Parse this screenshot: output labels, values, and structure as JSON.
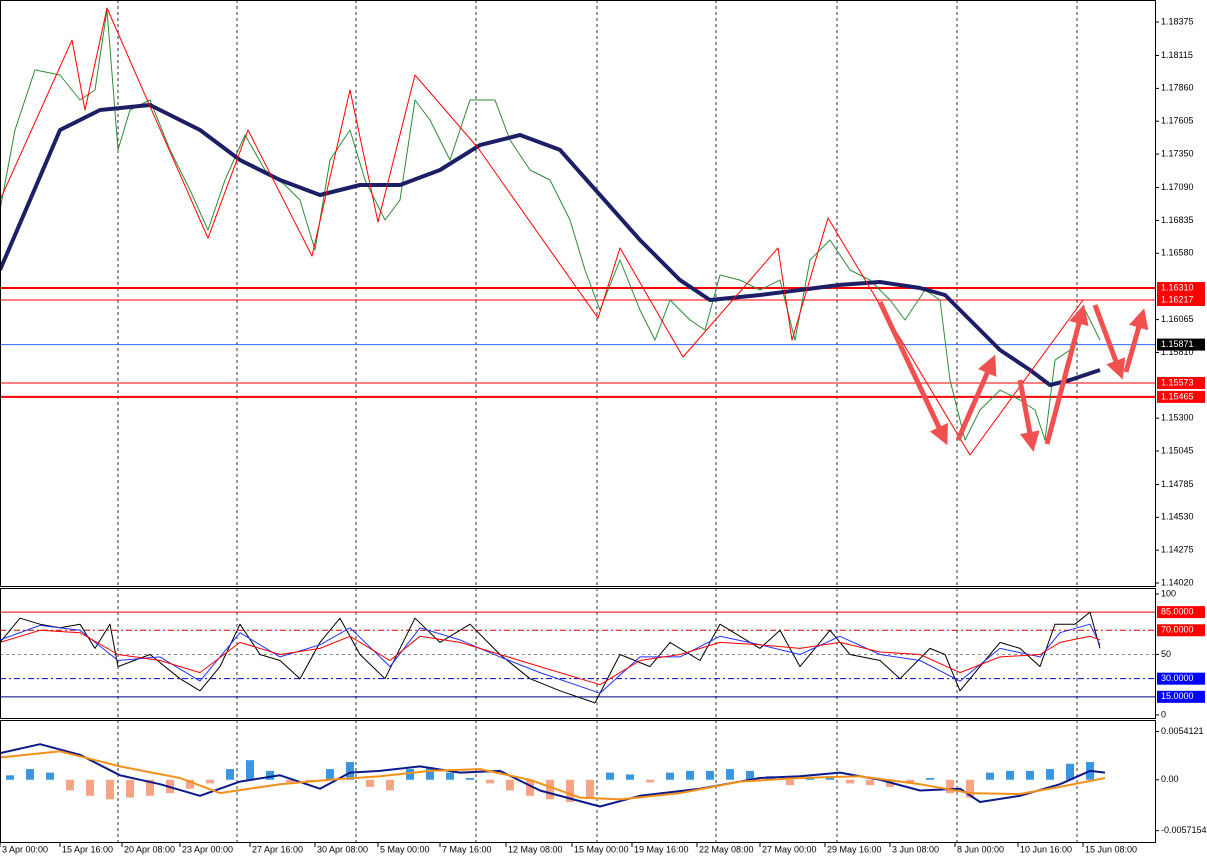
{
  "chart_data": [
    {
      "type": "line",
      "xlim": [
        0,
        1155
      ],
      "ylim": [
        1.13997,
        1.18546
      ],
      "yticks": [
        1.18375,
        1.18115,
        {
          "value": 1.1786,
          "label": "1.17860"
        },
        1.17605,
        {
          "value": 1.1735,
          "label": "1.17350"
        },
        {
          "value": 1.1709,
          "label": "1.17090"
        },
        1.16835,
        {
          "value": 1.1658,
          "label": "1.16580"
        },
        1.16065,
        {
          "value": 1.1581,
          "label": "1.15810"
        },
        {
          "value": 1.153,
          "label": "1.15300"
        },
        1.15045,
        1.14785,
        {
          "value": 1.1453,
          "label": "1.14530"
        },
        1.14275,
        {
          "value": 1.1402,
          "label": "1.14020"
        }
      ],
      "xticks": [
        {
          "value": 0,
          "label": "3 Apr 00:00"
        },
        {
          "value": 60,
          "label": "15 Apr 16:00"
        },
        {
          "value": 122,
          "label": "20 Apr 08:00"
        },
        {
          "value": 180,
          "label": "23 Apr 00:00"
        },
        {
          "value": 250,
          "label": "27 Apr 16:00"
        },
        {
          "value": 315,
          "label": "30 Apr 08:00"
        },
        {
          "value": 378,
          "label": "5 May 00:00"
        },
        {
          "value": 440,
          "label": "7 May 16:00"
        },
        {
          "value": 506,
          "label": "12 May 08:00"
        },
        {
          "value": 572,
          "label": "15 May 00:00"
        },
        {
          "value": 632,
          "label": "19 May 16:00"
        },
        {
          "value": 697,
          "label": "22 May 08:00"
        },
        {
          "value": 760,
          "label": "27 May 00:00"
        },
        {
          "value": 825,
          "label": "29 May 16:00"
        },
        {
          "value": 890,
          "label": "3 Jun 08:00"
        },
        {
          "value": 955,
          "label": "8 Jun 00:00"
        },
        {
          "value": 1018,
          "label": "10 Jun 16:00"
        },
        {
          "value": 1083,
          "label": "15 Jun 08:00"
        }
      ],
      "separators": [
        118,
        237,
        356,
        476,
        597,
        716,
        837,
        957,
        1077
      ],
      "levels": [
        {
          "value": 1.1631,
          "label": "1.16310",
          "color": "#ff0000",
          "label_color": "#ff0000",
          "style": "thick"
        },
        {
          "value": 1.16217,
          "label": "1.16217",
          "color": "#ff0000",
          "label_color": "#ff0000",
          "style": "thin"
        },
        {
          "value": 1.15871,
          "label": "1.15871",
          "color": "#3366ff",
          "label_color": "#000000",
          "style": "thin"
        },
        {
          "value": 1.15573,
          "label": "1.15573",
          "color": "#ff0000",
          "label_color": "#ff0000",
          "style": "thin"
        },
        {
          "value": 1.15465,
          "label": "1.15465",
          "color": "#ff0000",
          "label_color": "#ff0000",
          "style": "thick"
        }
      ],
      "series": [
        {
          "color": "#2e8b3a",
          "style": "thin",
          "x": [
            0,
            15,
            35,
            60,
            80,
            95,
            107,
            118,
            130,
            150,
            170,
            190,
            208,
            225,
            245,
            265,
            285,
            300,
            315,
            330,
            350,
            365,
            385,
            400,
            415,
            430,
            450,
            470,
            495,
            510,
            530,
            550,
            570,
            585,
            600,
            620,
            640,
            655,
            670,
            690,
            705,
            720,
            740,
            760,
            780,
            795,
            810,
            830,
            850,
            870,
            890,
            905,
            925,
            940,
            950,
            965,
            980,
            1000,
            1020,
            1035,
            1045,
            1055,
            1070,
            1085,
            1100
          ],
          "values": [
            1.16916,
            1.17537,
            1.18003,
            1.17964,
            1.1777,
            1.17847,
            1.18468,
            1.17382,
            1.17692,
            1.1777,
            1.17382,
            1.17071,
            1.1676,
            1.17149,
            1.17498,
            1.17226,
            1.1711,
            1.16993,
            1.16605,
            1.17304,
            1.17537,
            1.17149,
            1.16838,
            1.16993,
            1.1777,
            1.17614,
            1.17304,
            1.1777,
            1.1777,
            1.17459,
            1.17226,
            1.17149,
            1.16838,
            1.1645,
            1.16139,
            1.16528,
            1.16139,
            1.15906,
            1.16217,
            1.16062,
            1.15984,
            1.16411,
            1.16372,
            1.16295,
            1.16372,
            1.15906,
            1.16528,
            1.16683,
            1.1645,
            1.16372,
            1.16217,
            1.16062,
            1.16295,
            1.16217,
            1.15596,
            1.1513,
            1.15363,
            1.15518,
            1.15441,
            1.15363,
            1.1513,
            1.15751,
            1.15829,
            1.16139,
            1.15906
          ]
        },
        {
          "color": "#1c1f66",
          "style": "thick",
          "x": [
            0,
            30,
            60,
            100,
            150,
            200,
            240,
            280,
            320,
            360,
            400,
            440,
            480,
            520,
            560,
            600,
            640,
            680,
            710,
            760,
            800,
            840,
            880,
            920,
            945,
            970,
            1000,
            1030,
            1050,
            1070,
            1100
          ],
          "values": [
            1.1645,
            1.16993,
            1.17537,
            1.17692,
            1.17731,
            1.17537,
            1.17304,
            1.17149,
            1.17032,
            1.1711,
            1.1711,
            1.17226,
            1.1742,
            1.17498,
            1.17382,
            1.17032,
            1.16683,
            1.16372,
            1.16217,
            1.16256,
            1.16295,
            1.16334,
            1.16357,
            1.1631,
            1.16256,
            1.16062,
            1.15829,
            1.15674,
            1.15557,
            1.15596,
            1.15674
          ]
        },
        {
          "color": "#ff0000",
          "style": "thin",
          "x": [
            0,
            72,
            85,
            107,
            145,
            208,
            248,
            312,
            350,
            378,
            415,
            478,
            598,
            620,
            683,
            778,
            792,
            828,
            970,
            1083
          ],
          "values": [
            1.16993,
            1.18235,
            1.17692,
            1.18484,
            1.17809,
            1.16698,
            1.17537,
            1.16559,
            1.17847,
            1.16823,
            1.17964,
            1.17397,
            1.16077,
            1.16621,
            1.15775,
            1.16621,
            1.15906,
            1.16854,
            1.15014,
            1.16217
          ]
        }
      ]
    },
    {
      "type": "line",
      "xlim": [
        0,
        1155
      ],
      "ylim": [
        -2.5,
        104.1
      ],
      "yticks": [
        100,
        50,
        0
      ],
      "levels": [
        {
          "value": 85,
          "label": "85.0000",
          "color": "#ff0000",
          "label_color": "#ff0000",
          "style": "thin"
        },
        {
          "value": 70,
          "label": "70.0000",
          "color": "#cc0000",
          "label_color": "#ff0000",
          "style": "dashdot"
        },
        {
          "value": 50,
          "color": "#888888",
          "style": "dashed"
        },
        {
          "value": 30,
          "label": "30.0000",
          "color": "#0000cc",
          "label_color": "#0000ff",
          "style": "dashdot"
        },
        {
          "value": 15,
          "label": "15.0000",
          "color": "#000080",
          "label_color": "#0000ff",
          "style": "thin"
        }
      ],
      "series": [
        {
          "color": "#000000",
          "style": "thin",
          "x": [
            0,
            20,
            40,
            60,
            80,
            95,
            110,
            118,
            150,
            180,
            200,
            220,
            240,
            260,
            280,
            300,
            320,
            340,
            360,
            385,
            415,
            440,
            470,
            500,
            530,
            560,
            595,
            620,
            650,
            670,
            700,
            720,
            760,
            780,
            800,
            830,
            850,
            880,
            900,
            930,
            945,
            960,
            985,
            1000,
            1020,
            1040,
            1055,
            1075,
            1090,
            1100
          ],
          "values": [
            60,
            80,
            75,
            72,
            75,
            55,
            75,
            40,
            50,
            30,
            20,
            40,
            75,
            50,
            45,
            30,
            60,
            80,
            50,
            30,
            80,
            60,
            75,
            50,
            30,
            20,
            10,
            50,
            40,
            60,
            45,
            75,
            55,
            70,
            40,
            70,
            50,
            45,
            30,
            55,
            50,
            20,
            45,
            60,
            55,
            40,
            75,
            75,
            85,
            55
          ]
        },
        {
          "color": "#2233ff",
          "style": "thin",
          "x": [
            0,
            40,
            80,
            118,
            160,
            200,
            240,
            280,
            320,
            350,
            390,
            420,
            460,
            500,
            540,
            600,
            640,
            680,
            720,
            760,
            800,
            840,
            880,
            920,
            960,
            1000,
            1040,
            1060,
            1090,
            1100
          ],
          "values": [
            62,
            74,
            70,
            45,
            48,
            28,
            68,
            48,
            58,
            72,
            40,
            72,
            62,
            48,
            35,
            18,
            48,
            48,
            65,
            58,
            50,
            65,
            50,
            45,
            28,
            55,
            48,
            68,
            75,
            58
          ]
        },
        {
          "color": "#ff0000",
          "style": "thin",
          "x": [
            0,
            40,
            80,
            118,
            160,
            200,
            240,
            280,
            320,
            350,
            390,
            420,
            460,
            500,
            540,
            600,
            640,
            680,
            720,
            760,
            800,
            840,
            880,
            920,
            960,
            1000,
            1040,
            1060,
            1090,
            1100
          ],
          "values": [
            60,
            70,
            68,
            50,
            45,
            35,
            60,
            50,
            55,
            65,
            45,
            65,
            60,
            50,
            40,
            25,
            45,
            50,
            60,
            58,
            55,
            60,
            52,
            50,
            35,
            48,
            50,
            60,
            65,
            62
          ]
        }
      ]
    },
    {
      "type": "bar",
      "xlim": [
        0,
        1155
      ],
      "ylim": [
        -0.0071,
        0.0066
      ],
      "yticks": [
        0.0054121,
        {
          "value": 0,
          "label": "0.00"
        },
        -0.0057154
      ],
      "bars": {
        "positive": "#3a96e0",
        "negative": "#f7a385",
        "x": [
          10,
          30,
          50,
          70,
          90,
          110,
          130,
          150,
          170,
          190,
          210,
          230,
          250,
          270,
          290,
          310,
          330,
          350,
          370,
          390,
          410,
          430,
          450,
          470,
          490,
          510,
          530,
          550,
          570,
          590,
          610,
          630,
          650,
          670,
          690,
          710,
          730,
          750,
          770,
          790,
          810,
          830,
          850,
          870,
          890,
          910,
          930,
          950,
          970,
          990,
          1010,
          1030,
          1050,
          1070,
          1090
        ],
        "values": [
          0.0005,
          0.0012,
          0.0008,
          -0.0012,
          -0.0018,
          -0.0022,
          -0.002,
          -0.0018,
          -0.0015,
          -0.001,
          -0.0004,
          0.0012,
          0.0022,
          0.001,
          -0.0003,
          -0.0002,
          0.0012,
          0.002,
          -0.0008,
          -0.0012,
          0.0012,
          0.0014,
          0.0008,
          0.0002,
          -0.0004,
          -0.0012,
          -0.0018,
          -0.0022,
          -0.0025,
          -0.002,
          0.0008,
          0.0006,
          -0.0003,
          0.0008,
          0.001,
          0.001,
          0.0012,
          0.001,
          0.0004,
          -0.0006,
          0.0002,
          0.0004,
          -0.0004,
          -0.0006,
          -0.0008,
          -0.0004,
          0.0002,
          -0.0015,
          -0.002,
          0.0008,
          0.001,
          0.001,
          0.0012,
          0.0018,
          0.002
        ]
      },
      "series": [
        {
          "color": "#0a1a8c",
          "style": "medium",
          "x": [
            0,
            40,
            80,
            120,
            160,
            200,
            240,
            280,
            320,
            350,
            380,
            420,
            460,
            500,
            540,
            600,
            640,
            700,
            760,
            800,
            840,
            880,
            920,
            960,
            980,
            1020,
            1060,
            1090,
            1105
          ],
          "values": [
            0.003,
            0.004,
            0.0028,
            0.0005,
            -0.0005,
            -0.0018,
            -0.0002,
            0.0005,
            -0.001,
            0.0008,
            0.001,
            0.0015,
            0.0008,
            0.001,
            -0.0012,
            -0.003,
            -0.0018,
            -0.001,
            0.0002,
            0.0004,
            0.0008,
            0,
            -0.0012,
            -0.001,
            -0.0025,
            -0.0018,
            -0.0005,
            0.001,
            0.0008
          ]
        },
        {
          "color": "#f39019",
          "style": "medium",
          "x": [
            0,
            60,
            120,
            180,
            220,
            280,
            330,
            380,
            430,
            480,
            530,
            580,
            620,
            680,
            740,
            800,
            860,
            920,
            970,
            1020,
            1060,
            1105
          ],
          "values": [
            0.0025,
            0.0032,
            0.0015,
            0.0002,
            -0.0015,
            -0.0005,
            0,
            0.0004,
            0.001,
            0.0012,
            0,
            -0.002,
            -0.0022,
            -0.0015,
            -0.0002,
            0.0002,
            0.0004,
            -0.0005,
            -0.0015,
            -0.0016,
            -0.0008,
            0.0002
          ]
        }
      ]
    }
  ]
}
